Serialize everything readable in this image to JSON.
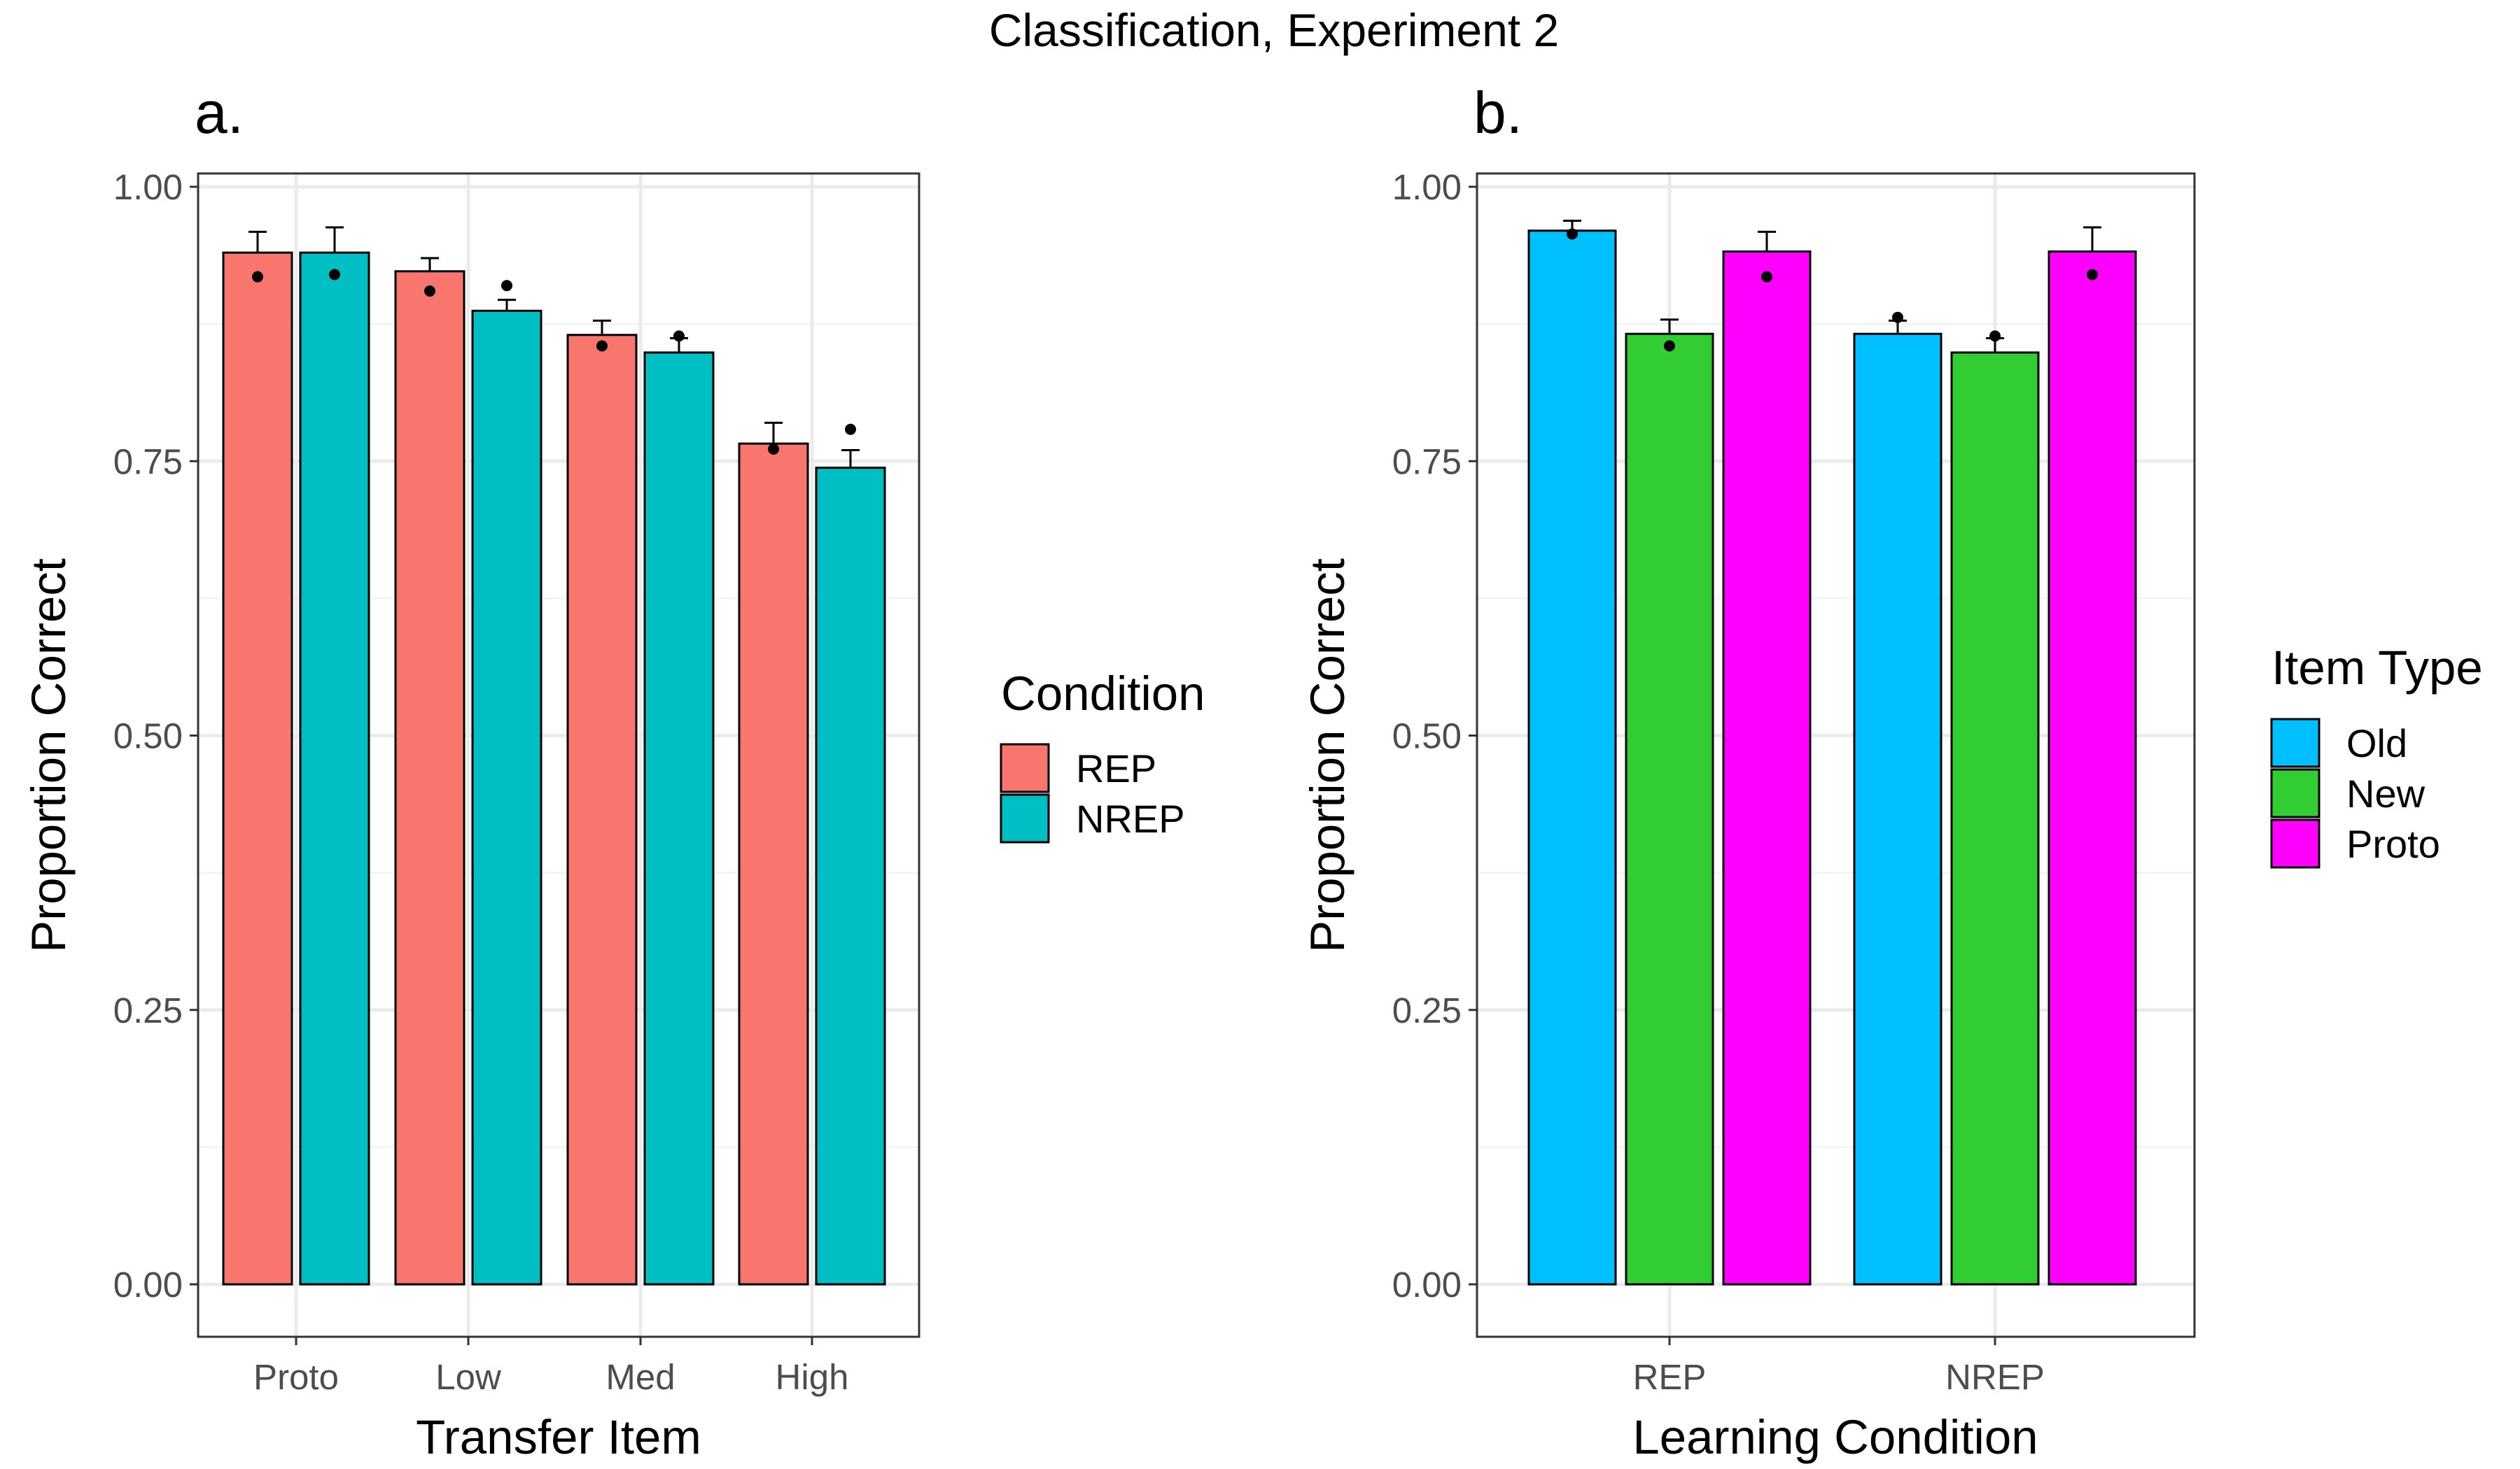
{
  "title": "Classification, Experiment 2",
  "chart_data": [
    {
      "type": "bar",
      "panel_label": "a.",
      "xlabel": "Transfer Item",
      "ylabel": "Proportion Correct",
      "ylim": [
        0,
        1.05
      ],
      "yticks": [
        "0.00",
        "0.25",
        "0.50",
        "0.75",
        "1.00"
      ],
      "ytick_values": [
        0,
        0.25,
        0.5,
        0.75,
        1.0
      ],
      "grid": true,
      "categories": [
        "Proto",
        "Low",
        "Med",
        "High"
      ],
      "legend": {
        "title": "Condition",
        "position": "right"
      },
      "series": [
        {
          "name": "REP",
          "color": "#F8766D",
          "values": [
            0.94,
            0.923,
            0.865,
            0.766
          ],
          "error_upper": [
            0.959,
            0.935,
            0.878,
            0.785
          ],
          "points": [
            0.918,
            0.905,
            0.855,
            0.761
          ]
        },
        {
          "name": "NREP",
          "color": "#00BFC4",
          "values": [
            0.94,
            0.887,
            0.849,
            0.744
          ],
          "error_upper": [
            0.963,
            0.897,
            0.862,
            0.76
          ],
          "points": [
            0.92,
            0.91,
            0.864,
            0.779
          ]
        }
      ]
    },
    {
      "type": "bar",
      "panel_label": "b.",
      "xlabel": "Learning Condition",
      "ylabel": "Proportion Correct",
      "ylim": [
        0,
        1.05
      ],
      "yticks": [
        "0.00",
        "0.25",
        "0.50",
        "0.75",
        "1.00"
      ],
      "ytick_values": [
        0,
        0.25,
        0.5,
        0.75,
        1.0
      ],
      "grid": true,
      "categories": [
        "REP",
        "NREP"
      ],
      "legend": {
        "title": "Item Type",
        "position": "right"
      },
      "series": [
        {
          "name": "Old",
          "color": "#00BFFF",
          "values": [
            0.96,
            0.866
          ],
          "error_upper": [
            0.969,
            0.878
          ],
          "points": [
            0.957,
            0.881
          ]
        },
        {
          "name": "New",
          "color": "#32CD32",
          "values": [
            0.866,
            0.849
          ],
          "error_upper": [
            0.879,
            0.862
          ],
          "points": [
            0.855,
            0.864
          ]
        },
        {
          "name": "Proto",
          "color": "#FF00FF",
          "values": [
            0.941,
            0.941
          ],
          "error_upper": [
            0.959,
            0.963
          ],
          "points": [
            0.918,
            0.92
          ]
        }
      ]
    }
  ]
}
